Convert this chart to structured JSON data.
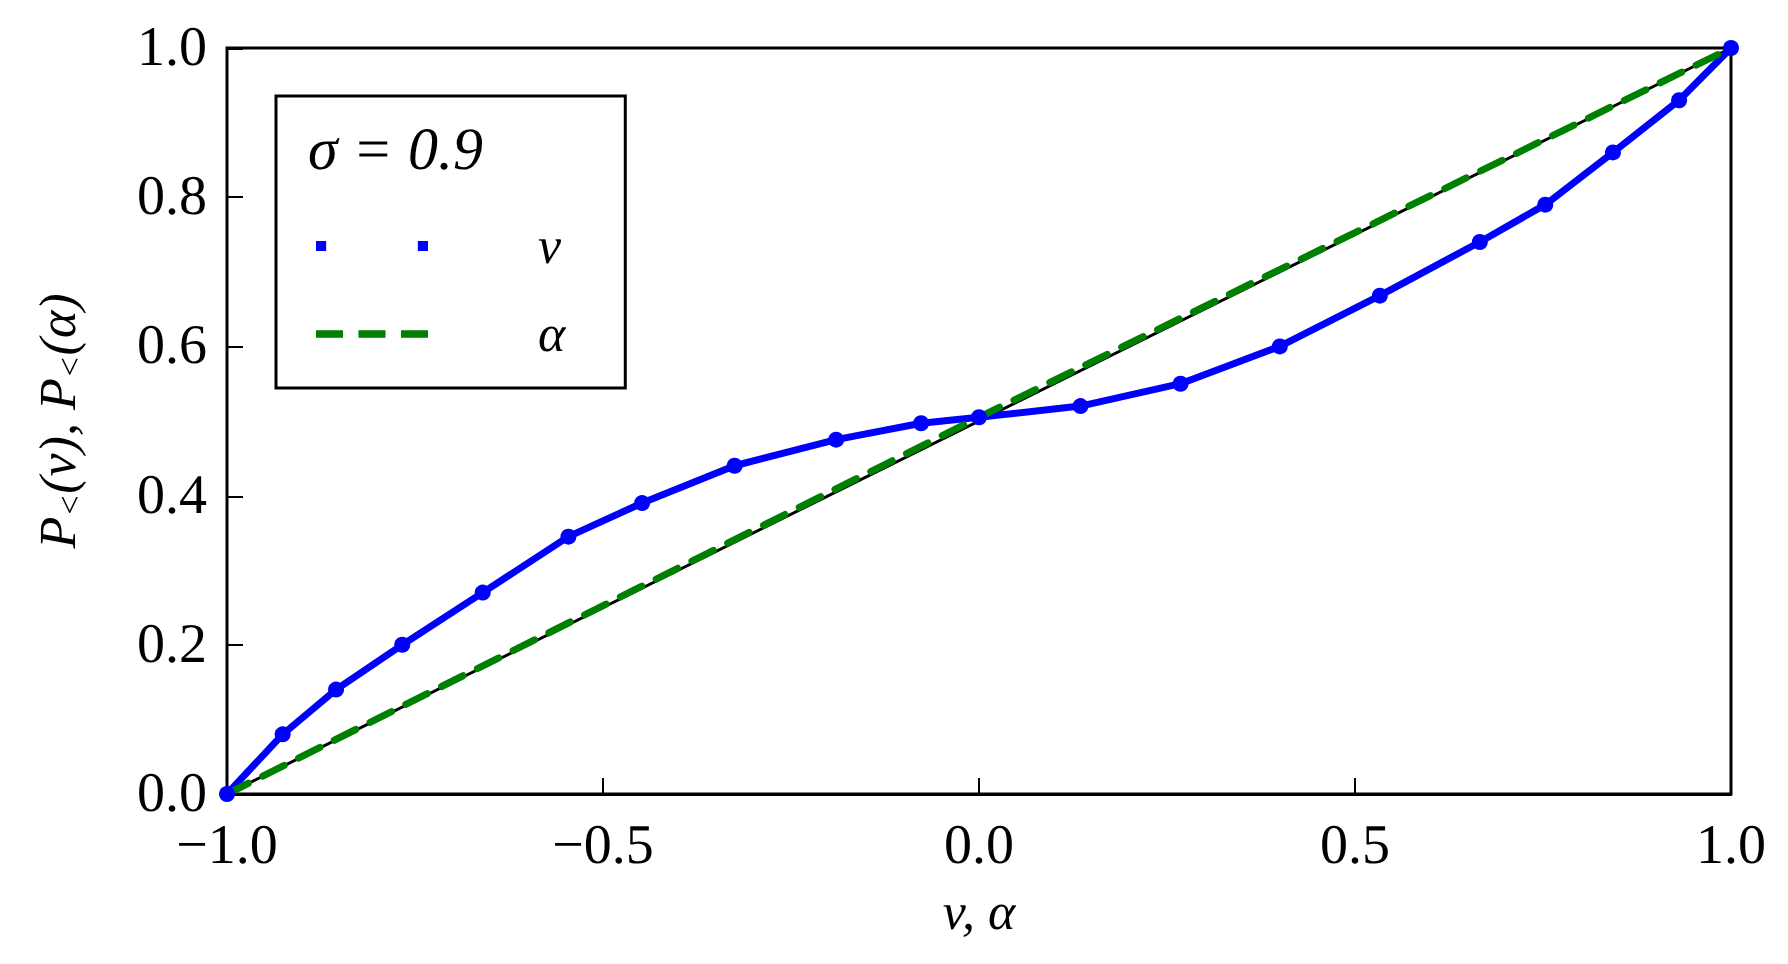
{
  "chart_data": {
    "type": "line",
    "xlabel": "v, α",
    "ylabel": "P$_{<}$(v), P$_{<}$(α)",
    "legend_title": "σ = 0.9",
    "legend": "top left",
    "grid": false,
    "xlim": [
      -1,
      1
    ],
    "ylim": [
      0,
      1
    ],
    "xticks": [
      {
        "value": -1,
        "label": "−1.0"
      },
      {
        "value": -0.5,
        "label": "−0.5"
      },
      {
        "value": 0,
        "label": "0.0"
      },
      {
        "value": 0.5,
        "label": "0.5"
      },
      {
        "value": 1,
        "label": "1.0"
      }
    ],
    "yticks": [
      {
        "value": 0,
        "label": "0.0"
      },
      {
        "value": 0.2,
        "label": "0.2"
      },
      {
        "value": 0.4,
        "label": "0.4"
      },
      {
        "value": 0.6,
        "label": "0.6"
      },
      {
        "value": 0.8,
        "label": "0.8"
      },
      {
        "value": 1,
        "label": "1.0"
      }
    ],
    "series": [
      {
        "color": "#000000",
        "line_style": "solid",
        "marker": "none",
        "x": [
          -1,
          1
        ],
        "values": [
          0,
          1
        ]
      },
      {
        "name": "v",
        "color": "#0000ff",
        "line_style": "solid",
        "marker": "circle",
        "x": [
          -1,
          -0.926,
          -0.855,
          -0.767,
          -0.66,
          -0.546,
          -0.448,
          -0.325,
          -0.19,
          -0.077,
          0,
          0.135,
          0.268,
          0.4,
          0.533,
          0.666,
          0.753,
          0.843,
          0.931,
          1
        ],
        "values": [
          0,
          0.08,
          0.14,
          0.2,
          0.27,
          0.345,
          0.39,
          0.44,
          0.475,
          0.497,
          0.505,
          0.52,
          0.55,
          0.6,
          0.668,
          0.74,
          0.79,
          0.86,
          0.93,
          1
        ]
      },
      {
        "name": "α",
        "color": "#008000",
        "line_style": "dashed",
        "marker": "none",
        "x": [
          -1,
          0,
          1
        ],
        "values": [
          0,
          0.505,
          1
        ]
      }
    ]
  }
}
